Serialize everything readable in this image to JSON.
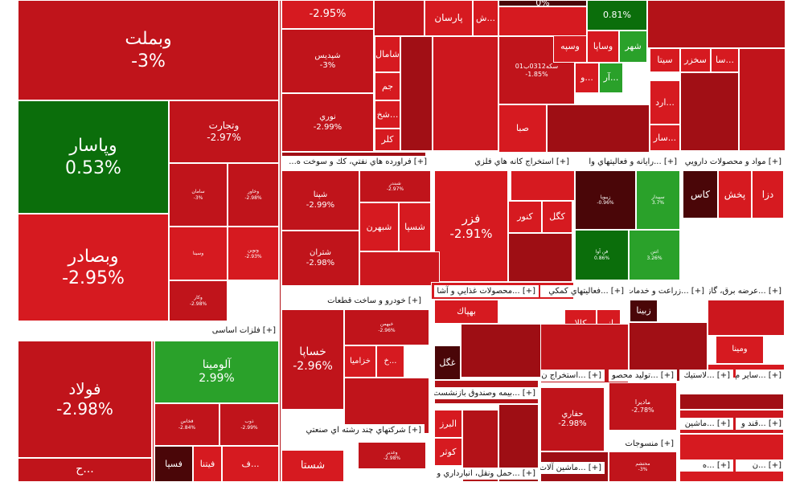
{
  "chart_data": {
    "type": "treemap",
    "color_scale": {
      "negative_strong": "#8e0a0f",
      "negative": "#c0141b",
      "neutral_negative": "#d61a20",
      "positive": "#2aa12a",
      "positive_strong": "#0b6e0b"
    },
    "sectors": [
      {
        "name": "[+] فلزات اساسی"
      },
      {
        "name": "[+] فراورده هاي نفتي، كك و سوخت ه..."
      },
      {
        "name": "[+] استخراج كانه هاي فلزي"
      },
      {
        "name": "[+] ...رايانه و فعاليتهاي وا"
      },
      {
        "name": "[+] مواد و محصولات دارويي"
      },
      {
        "name": "[+] خودرو و ساخت قطعات"
      },
      {
        "name": "[+] ...محصولات غذايي و آشا"
      },
      {
        "name": "[+] ...فعاليتهاي كمكي"
      },
      {
        "name": "[+] ...زراعت و خدمات"
      },
      {
        "name": "[+] ...عرضه برق، گاز"
      },
      {
        "name": "[+] ...بيمه وصندوق بازنشست"
      },
      {
        "name": "[+] ...استخراج ن"
      },
      {
        "name": "[+] ...توليد محصو"
      },
      {
        "name": "[+] ...لاستيك"
      },
      {
        "name": "[+] ...ساير م"
      },
      {
        "name": "[+] شركتهاي چند رشته اي صنعتي"
      },
      {
        "name": "[+] ...ماشين"
      },
      {
        "name": "[+] ...قند و"
      },
      {
        "name": "[+] منسوجات"
      },
      {
        "name": "[+] ...ماشين آلات"
      },
      {
        "name": "[+] ...حمل ونقل، انبارداري و ا"
      },
      {
        "name": "[+] ...ه"
      },
      {
        "name": "[+] ...ن"
      }
    ],
    "tiles": [
      {
        "symbol": "وبملت",
        "change": "-3%",
        "pct": -3.0
      },
      {
        "symbol": "وپاسار",
        "change": "0.53%",
        "pct": 0.53
      },
      {
        "symbol": "وبصادر",
        "change": "-2.95%",
        "pct": -2.95
      },
      {
        "symbol": "وتجارت",
        "change": "-2.97%",
        "pct": -2.97
      },
      {
        "symbol": "سامان",
        "change": "-3%",
        "pct": -3.0
      },
      {
        "symbol": "وخاور",
        "change": "-2.98%",
        "pct": -2.98
      },
      {
        "symbol": "ونوين",
        "change": "-2.93%",
        "pct": -2.93
      },
      {
        "symbol": "وسينا",
        "change": "",
        "pct": -2.9
      },
      {
        "symbol": "وكار",
        "change": "-2.98%",
        "pct": -2.98
      },
      {
        "symbol": "فولاد",
        "change": "-2.98%",
        "pct": -2.98
      },
      {
        "symbol": "آلومينا",
        "change": "2.99%",
        "pct": 2.99
      },
      {
        "symbol": "فخاس",
        "change": "-2.84%",
        "pct": -2.84
      },
      {
        "symbol": "ذوب",
        "change": "-2.99%",
        "pct": -2.99
      },
      {
        "symbol": "فسپا",
        "change": "",
        "pct": -3.0
      },
      {
        "symbol": "فيتنا",
        "change": "",
        "pct": -2.9
      },
      {
        "symbol": "ف...",
        "change": "",
        "pct": -2.9
      },
      {
        "symbol": "ح...",
        "change": "",
        "pct": -3.0
      },
      {
        "symbol": "",
        "change": "-2.95%",
        "pct": -2.95
      },
      {
        "symbol": "شپديس",
        "change": "-3%",
        "pct": -3.0
      },
      {
        "symbol": "نوري",
        "change": "-2.99%",
        "pct": -2.99
      },
      {
        "symbol": "شپنا",
        "change": "-2.99%",
        "pct": -2.99
      },
      {
        "symbol": "شبندر",
        "change": "-2.97%",
        "pct": -2.97
      },
      {
        "symbol": "شبهرن",
        "change": "",
        "pct": -2.9
      },
      {
        "symbol": "شسپا",
        "change": "",
        "pct": -2.9
      },
      {
        "symbol": "شتران",
        "change": "-2.98%",
        "pct": -2.98
      },
      {
        "symbol": "فزر",
        "change": "-2.91%",
        "pct": -2.91
      },
      {
        "symbol": "كگل",
        "change": "",
        "pct": -2.9
      },
      {
        "symbol": "كنور",
        "change": "",
        "pct": -2.9
      },
      {
        "symbol": "زيبويا",
        "change": "-0.96%",
        "pct": -0.96
      },
      {
        "symbol": "سپيدار",
        "change": "3.7%",
        "pct": 3.7
      },
      {
        "symbol": "فن آوا",
        "change": "0.86%",
        "pct": 0.86
      },
      {
        "symbol": "انتن",
        "change": "3.26%",
        "pct": 3.26
      },
      {
        "symbol": "كاس",
        "change": "",
        "pct": -2.9
      },
      {
        "symbol": "پخش",
        "change": "",
        "pct": -2.9
      },
      {
        "symbol": "دزا",
        "change": "",
        "pct": -2.9
      },
      {
        "symbol": "خساپا",
        "change": "-2.96%",
        "pct": -2.96
      },
      {
        "symbol": "خبهمن",
        "change": "-2.96%",
        "pct": -2.96
      },
      {
        "symbol": "خزاميا",
        "change": "",
        "pct": -2.9
      },
      {
        "symbol": "خ...",
        "change": "",
        "pct": -2.9
      },
      {
        "symbol": "بهپاك",
        "change": "",
        "pct": -2.9
      },
      {
        "symbol": "غگل",
        "change": "",
        "pct": -3.0
      },
      {
        "symbol": "كالا",
        "change": "",
        "pct": -2.9
      },
      {
        "symbol": "انر",
        "change": "",
        "pct": -2.9
      },
      {
        "symbol": "زبينا",
        "change": "",
        "pct": -3.0
      },
      {
        "symbol": "ومينا",
        "change": "",
        "pct": -2.9
      },
      {
        "symbol": "البرز",
        "change": "",
        "pct": -2.9
      },
      {
        "symbol": "كوثر",
        "change": "",
        "pct": -2.9
      },
      {
        "symbol": "حفاري",
        "change": "-2.98%",
        "pct": -2.98
      },
      {
        "symbol": "ماديرا",
        "change": "-2.78%",
        "pct": -2.78
      },
      {
        "symbol": "وغدير",
        "change": "-2.98%",
        "pct": -2.98
      },
      {
        "symbol": "شستا",
        "change": "",
        "pct": -2.9
      },
      {
        "symbol": "پارسان",
        "change": "",
        "pct": -2.9
      },
      {
        "symbol": "شامال",
        "change": "",
        "pct": -2.9
      },
      {
        "symbol": "جم",
        "change": "",
        "pct": -2.9
      },
      {
        "symbol": "شخ...",
        "change": "",
        "pct": -2.9
      },
      {
        "symbol": "كلر",
        "change": "",
        "pct": -2.9
      },
      {
        "symbol": "ش...",
        "change": "",
        "pct": -2.9
      },
      {
        "symbol": "",
        "change": "0%",
        "pct": 0.0
      },
      {
        "symbol": "",
        "change": "0.81%",
        "pct": 0.81
      },
      {
        "symbol": "سكه0312ب01",
        "change": "-1.85%",
        "pct": -1.85
      },
      {
        "symbol": "وساپا",
        "change": "",
        "pct": -2.9
      },
      {
        "symbol": "وسپه",
        "change": "",
        "pct": -2.9
      },
      {
        "symbol": "شهر",
        "change": "",
        "pct": 2.0
      },
      {
        "symbol": "و...",
        "change": "",
        "pct": -2.9
      },
      {
        "symbol": "آر...",
        "change": "",
        "pct": 2.0
      },
      {
        "symbol": "صبا",
        "change": "",
        "pct": -2.9
      },
      {
        "symbol": "سيتا",
        "change": "",
        "pct": -2.9
      },
      {
        "symbol": "سخزر",
        "change": "",
        "pct": -2.9
      },
      {
        "symbol": "سا...",
        "change": "",
        "pct": -2.9
      },
      {
        "symbol": "ارد...",
        "change": "",
        "pct": -2.9
      },
      {
        "symbol": "سار...",
        "change": "",
        "pct": -2.9
      },
      {
        "symbol": "محتشم",
        "change": "-3%",
        "pct": -3.0
      }
    ]
  }
}
